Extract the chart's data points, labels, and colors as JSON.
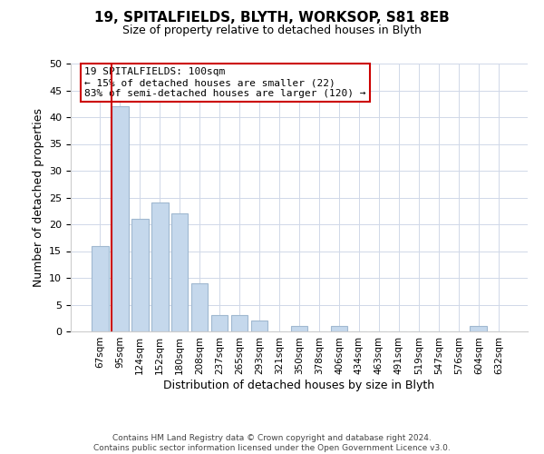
{
  "title": "19, SPITALFIELDS, BLYTH, WORKSOP, S81 8EB",
  "subtitle": "Size of property relative to detached houses in Blyth",
  "bar_labels": [
    "67sqm",
    "95sqm",
    "124sqm",
    "152sqm",
    "180sqm",
    "208sqm",
    "237sqm",
    "265sqm",
    "293sqm",
    "321sqm",
    "350sqm",
    "378sqm",
    "406sqm",
    "434sqm",
    "463sqm",
    "491sqm",
    "519sqm",
    "547sqm",
    "576sqm",
    "604sqm",
    "632sqm"
  ],
  "bar_values": [
    16,
    42,
    21,
    24,
    22,
    9,
    3,
    3,
    2,
    0,
    1,
    0,
    1,
    0,
    0,
    0,
    0,
    0,
    0,
    1,
    0
  ],
  "bar_color": "#c5d8ec",
  "bar_edge_color": "#a0b8d0",
  "marker_line_color": "#cc0000",
  "annotation_line1": "19 SPITALFIELDS: 100sqm",
  "annotation_line2": "← 15% of detached houses are smaller (22)",
  "annotation_line3": "83% of semi-detached houses are larger (120) →",
  "annotation_box_color": "#ffffff",
  "annotation_box_edge_color": "#cc0000",
  "xlabel": "Distribution of detached houses by size in Blyth",
  "ylabel": "Number of detached properties",
  "ylim": [
    0,
    50
  ],
  "yticks": [
    0,
    5,
    10,
    15,
    20,
    25,
    30,
    35,
    40,
    45,
    50
  ],
  "footer_line1": "Contains HM Land Registry data © Crown copyright and database right 2024.",
  "footer_line2": "Contains public sector information licensed under the Open Government Licence v3.0.",
  "bg_color": "#ffffff",
  "grid_color": "#d0d8e8"
}
